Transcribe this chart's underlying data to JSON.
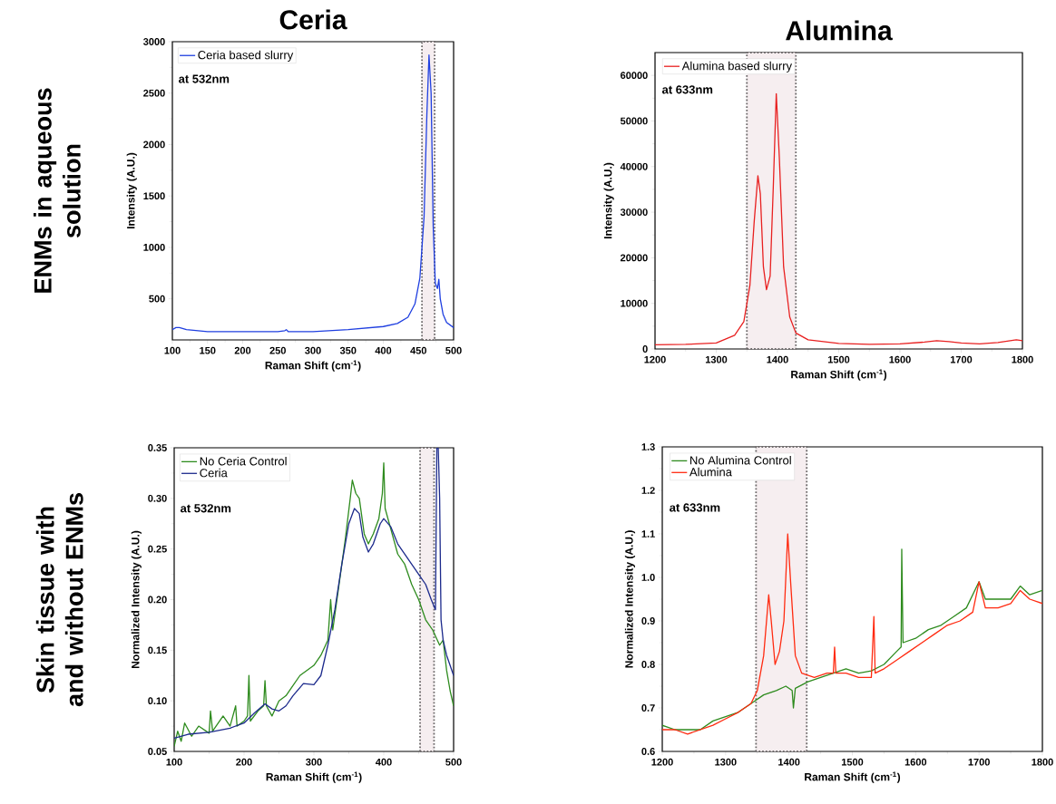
{
  "chart_data": [
    {
      "type": "line",
      "title": "Ceria",
      "xlabel": "Raman Shift (cm$^{-1}$)",
      "ylabel": "Intensity (A.U.)",
      "annotations": [
        "at 532nm",
        "ENMs in aqueous solution"
      ],
      "legend": "top left",
      "xlim": [
        100,
        500
      ],
      "xticks": [
        100,
        150,
        200,
        250,
        300,
        350,
        400,
        450,
        500
      ],
      "ylim": [
        100,
        3000
      ],
      "yticks": [
        500,
        1000,
        1500,
        2000,
        2500,
        3000
      ],
      "bands": [
        {
          "axis": "x",
          "from": 455,
          "to": 473,
          "color": "#f6eef0"
        }
      ],
      "series": [
        {
          "name": "Ceria based slurry",
          "color": "#1f3fe0",
          "x": [
            100,
            105,
            110,
            120,
            150,
            200,
            250,
            260,
            262,
            265,
            300,
            350,
            400,
            420,
            435,
            445,
            452,
            458,
            462,
            465,
            468,
            471,
            474,
            477,
            479,
            481,
            485,
            490,
            500
          ],
          "values": [
            200,
            220,
            220,
            200,
            180,
            180,
            180,
            190,
            200,
            180,
            180,
            200,
            230,
            260,
            320,
            450,
            700,
            1300,
            2300,
            2870,
            2500,
            1200,
            650,
            600,
            690,
            500,
            350,
            270,
            220
          ]
        }
      ]
    },
    {
      "type": "line",
      "title": "Alumina",
      "xlabel": "Raman Shift (cm$^{-1}$)",
      "ylabel": "Intensity (A.U.)",
      "annotations": [
        "at 633nm"
      ],
      "legend": "top left",
      "xlim": [
        1200,
        1800
      ],
      "xticks": [
        1200,
        1300,
        1400,
        1500,
        1600,
        1700,
        1800
      ],
      "ylim": [
        0,
        65000
      ],
      "yticks": [
        0,
        10000,
        20000,
        30000,
        40000,
        50000,
        60000
      ],
      "bands": [
        {
          "axis": "x",
          "from": 1350,
          "to": 1430,
          "color": "#f6eef0"
        }
      ],
      "series": [
        {
          "name": "Alumina based slurry",
          "color": "#e82020",
          "x": [
            1200,
            1250,
            1300,
            1330,
            1345,
            1355,
            1362,
            1368,
            1372,
            1377,
            1382,
            1388,
            1393,
            1398,
            1403,
            1410,
            1420,
            1430,
            1450,
            1500,
            1550,
            1600,
            1640,
            1660,
            1680,
            1700,
            1730,
            1760,
            1790,
            1800
          ],
          "values": [
            900,
            1000,
            1300,
            3000,
            6000,
            14000,
            28000,
            38000,
            34000,
            18000,
            13000,
            16000,
            35000,
            56000,
            42000,
            18000,
            7000,
            3500,
            2000,
            1200,
            1000,
            1100,
            1500,
            1800,
            1600,
            1300,
            1100,
            1400,
            2000,
            1800
          ]
        }
      ]
    },
    {
      "type": "line",
      "xlabel": "Raman Shift (cm$^{-1}$)",
      "ylabel": "Normalized Intensity (A.U.)",
      "annotations": [
        "at 532nm",
        "Skin tissue with and without ENMs"
      ],
      "legend": "top left",
      "xlim": [
        100,
        500
      ],
      "xticks": [
        100,
        200,
        300,
        400,
        500
      ],
      "ylim": [
        0.05,
        0.35
      ],
      "yticks": [
        0.05,
        {
          "value": 0.1,
          "label": "0.10"
        },
        0.15,
        {
          "value": 0.2,
          "label": "0.20"
        },
        0.25,
        {
          "value": 0.3,
          "label": "0.30"
        },
        0.35
      ],
      "bands": [
        {
          "axis": "x",
          "from": 452,
          "to": 472,
          "color": "#f6eef0"
        }
      ],
      "series": [
        {
          "name": "No Ceria Control",
          "color": "#2e8b1e",
          "x": [
            100,
            105,
            110,
            115,
            125,
            135,
            150,
            152,
            155,
            170,
            180,
            188,
            190,
            200,
            205,
            207,
            209,
            220,
            228,
            230,
            232,
            240,
            250,
            260,
            270,
            280,
            290,
            300,
            310,
            320,
            324,
            327,
            335,
            345,
            352,
            355,
            360,
            365,
            372,
            378,
            385,
            393,
            398,
            400,
            402,
            410,
            420,
            430,
            440,
            450,
            460,
            470,
            480,
            485,
            490,
            495,
            500
          ],
          "values": [
            0.055,
            0.07,
            0.06,
            0.078,
            0.065,
            0.075,
            0.068,
            0.09,
            0.07,
            0.085,
            0.075,
            0.095,
            0.075,
            0.08,
            0.085,
            0.125,
            0.08,
            0.09,
            0.095,
            0.12,
            0.095,
            0.085,
            0.1,
            0.105,
            0.115,
            0.125,
            0.13,
            0.135,
            0.145,
            0.16,
            0.2,
            0.17,
            0.21,
            0.26,
            0.3,
            0.318,
            0.305,
            0.3,
            0.265,
            0.255,
            0.265,
            0.28,
            0.305,
            0.335,
            0.29,
            0.27,
            0.245,
            0.235,
            0.215,
            0.2,
            0.18,
            0.17,
            0.155,
            0.16,
            0.13,
            0.11,
            0.095
          ]
        },
        {
          "name": "Ceria",
          "color": "#1c2a8c",
          "x": [
            100,
            120,
            150,
            180,
            200,
            215,
            230,
            240,
            250,
            260,
            270,
            285,
            300,
            310,
            320,
            330,
            340,
            350,
            358,
            365,
            370,
            378,
            385,
            395,
            400,
            410,
            420,
            430,
            440,
            450,
            460,
            468,
            474,
            476,
            478,
            480,
            482,
            485,
            490,
            500
          ],
          "values": [
            0.063,
            0.067,
            0.069,
            0.073,
            0.078,
            0.088,
            0.097,
            0.092,
            0.09,
            0.095,
            0.105,
            0.117,
            0.116,
            0.125,
            0.155,
            0.19,
            0.235,
            0.275,
            0.29,
            0.285,
            0.262,
            0.247,
            0.255,
            0.275,
            0.28,
            0.272,
            0.255,
            0.245,
            0.235,
            0.225,
            0.215,
            0.2,
            0.19,
            0.35,
            0.35,
            0.3,
            0.18,
            0.16,
            0.145,
            0.125
          ]
        }
      ]
    },
    {
      "type": "line",
      "xlabel": "Raman Shift (cm$^{-1}$)",
      "ylabel": "Normalized Intensity (A.U.)",
      "annotations": [
        "at 633nm"
      ],
      "legend": "top left",
      "xlim": [
        1200,
        1800
      ],
      "xticks": [
        1200,
        1300,
        1400,
        1500,
        1600,
        1700,
        1800
      ],
      "ylim": [
        0.6,
        1.3
      ],
      "yticks": [
        0.6,
        0.7,
        0.8,
        0.9,
        {
          "value": 1,
          "label": "1.0"
        },
        1.1,
        1.2,
        1.3
      ],
      "bands": [
        {
          "axis": "x",
          "from": 1348,
          "to": 1428,
          "color": "#f6eef0"
        }
      ],
      "series": [
        {
          "name": "No Alumina Control",
          "color": "#2e8b1e",
          "x": [
            1200,
            1220,
            1240,
            1260,
            1280,
            1300,
            1320,
            1340,
            1360,
            1380,
            1395,
            1405,
            1407,
            1410,
            1430,
            1450,
            1470,
            1490,
            1510,
            1530,
            1550,
            1570,
            1577,
            1578,
            1580,
            1600,
            1620,
            1640,
            1660,
            1680,
            1700,
            1710,
            1730,
            1750,
            1765,
            1780,
            1800
          ],
          "values": [
            0.66,
            0.65,
            null,
            0.65,
            0.67,
            0.68,
            0.69,
            0.71,
            0.73,
            0.74,
            0.75,
            0.74,
            0.7,
            0.745,
            0.76,
            0.77,
            0.78,
            0.79,
            0.78,
            0.785,
            0.8,
            0.83,
            0.84,
            1.065,
            0.85,
            0.86,
            0.88,
            0.89,
            0.91,
            0.93,
            0.99,
            0.95,
            0.95,
            0.95,
            0.98,
            0.96,
            0.97
          ]
        },
        {
          "name": "Alumina",
          "color": "#ff2a10",
          "x": [
            1200,
            1220,
            1240,
            1260,
            1280,
            1300,
            1320,
            1340,
            1350,
            1360,
            1368,
            1372,
            1378,
            1385,
            1392,
            1398,
            1403,
            1410,
            1420,
            1440,
            1460,
            1470,
            1472,
            1474,
            1490,
            1510,
            1530,
            1534,
            1536,
            1550,
            1570,
            1590,
            1610,
            1630,
            1650,
            1670,
            1690,
            1700,
            1710,
            1730,
            1750,
            1765,
            1780,
            1800
          ],
          "values": [
            0.65,
            0.65,
            0.64,
            0.65,
            0.66,
            0.675,
            0.69,
            0.71,
            0.74,
            0.82,
            0.96,
            0.9,
            0.8,
            0.83,
            0.9,
            1.1,
            0.98,
            0.82,
            0.78,
            0.77,
            0.78,
            0.78,
            0.84,
            0.78,
            0.78,
            0.77,
            0.77,
            0.91,
            0.78,
            0.79,
            0.81,
            0.83,
            0.85,
            0.87,
            0.89,
            0.9,
            0.92,
            0.99,
            0.93,
            0.93,
            0.94,
            0.97,
            0.95,
            0.94
          ]
        }
      ]
    }
  ]
}
